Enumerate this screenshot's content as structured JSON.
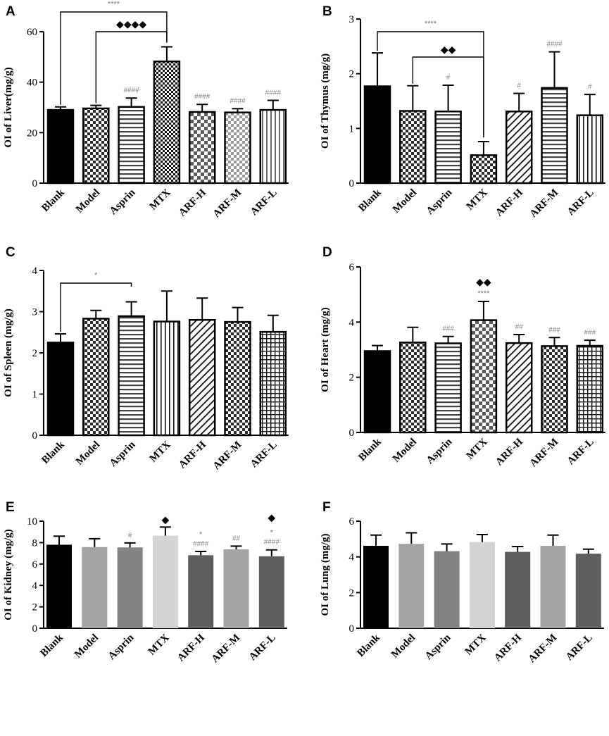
{
  "chart_data": [
    {
      "panel": "A",
      "type": "bar",
      "ylabel": "OI of Liver(mg/g)",
      "ylim": [
        0,
        60
      ],
      "yticks": [
        0,
        20,
        40,
        60
      ],
      "categories": [
        "Blank",
        "Model",
        "Asprin",
        "MTX",
        "ARF-H",
        "ARF-M",
        "ARF-L"
      ],
      "values": [
        29,
        29.6,
        30.2,
        48.2,
        28.2,
        28,
        29
      ],
      "errors": [
        1.2,
        1.2,
        3.5,
        5.8,
        3.0,
        1.5,
        3.8
      ],
      "patterns": [
        "solid",
        "checker",
        "hlines",
        "checker-fine",
        "checker-big",
        "checker-light",
        "vlines-gray"
      ],
      "annotations": [
        "",
        "",
        "####",
        "",
        "####",
        "####",
        "####"
      ],
      "brackets": [
        {
          "from": 0,
          "to": 3,
          "label": "****",
          "kind": "star"
        },
        {
          "from": 1,
          "to": 3,
          "label": "◆◆◆◆",
          "kind": "diamond"
        }
      ]
    },
    {
      "panel": "B",
      "type": "bar",
      "ylabel": "OI of Thymus (mg/g)",
      "ylim": [
        0,
        3
      ],
      "yticks": [
        0,
        1,
        2,
        3
      ],
      "categories": [
        "Blank",
        "Model",
        "Asprin",
        "MTX",
        "ARF-H",
        "ARF-M",
        "ARF-L"
      ],
      "values": [
        1.77,
        1.32,
        1.31,
        0.51,
        1.31,
        1.74,
        1.24
      ],
      "errors": [
        0.61,
        0.46,
        0.48,
        0.25,
        0.33,
        0.66,
        0.38
      ],
      "patterns": [
        "solid",
        "checker",
        "hlines",
        "checker",
        "diag",
        "hlines",
        "vlines"
      ],
      "annotations": [
        "",
        "",
        "#",
        "",
        "#",
        "####",
        "#"
      ],
      "brackets": [
        {
          "from": 0,
          "to": 3,
          "label": "****",
          "kind": "star"
        },
        {
          "from": 1,
          "to": 3,
          "label": "◆◆",
          "kind": "diamond"
        }
      ]
    },
    {
      "panel": "C",
      "type": "bar",
      "ylabel": "OI of Spleen (mg/g)",
      "ylim": [
        0,
        4
      ],
      "yticks": [
        0,
        1,
        2,
        3,
        4
      ],
      "categories": [
        "Blank",
        "Model",
        "Asprin",
        "MTX",
        "ARF-H",
        "ARF-M",
        "ARF-L"
      ],
      "values": [
        2.25,
        2.83,
        2.89,
        2.76,
        2.8,
        2.75,
        2.51
      ],
      "errors": [
        0.21,
        0.2,
        0.35,
        0.74,
        0.53,
        0.35,
        0.4
      ],
      "patterns": [
        "solid",
        "checker",
        "hlines",
        "vlines",
        "diag",
        "checker",
        "grid"
      ],
      "annotations": [
        "",
        "",
        "",
        "",
        "",
        "",
        ""
      ],
      "brackets": [
        {
          "from": 0,
          "to": 2,
          "label": "*",
          "kind": "star"
        }
      ]
    },
    {
      "panel": "D",
      "type": "bar",
      "ylabel": "OI of Heart (mg/g)",
      "ylim": [
        0,
        6
      ],
      "yticks": [
        0,
        2,
        4,
        6
      ],
      "categories": [
        "Blank",
        "Model",
        "Asprin",
        "MTX",
        "ARF-H",
        "ARF-M",
        "ARF-L"
      ],
      "values": [
        2.95,
        3.26,
        3.23,
        4.07,
        3.24,
        3.13,
        3.14
      ],
      "errors": [
        0.2,
        0.55,
        0.25,
        0.68,
        0.31,
        0.31,
        0.2
      ],
      "patterns": [
        "solid",
        "checker",
        "hlines",
        "checker-big",
        "diag",
        "checker",
        "grid"
      ],
      "annotations": [
        "",
        "",
        "###",
        "****",
        "##",
        "###",
        "###"
      ],
      "top_marks": [
        "",
        "",
        "",
        "◆◆",
        "",
        "",
        ""
      ],
      "brackets": []
    },
    {
      "panel": "E",
      "type": "bar",
      "ylabel": "OI of Kidney (mg/g)",
      "ylim": [
        0,
        10
      ],
      "yticks": [
        0,
        2,
        4,
        6,
        8,
        10
      ],
      "categories": [
        "Blank",
        "Model",
        "Asprin",
        "MTX",
        "ARF-H",
        "ARF-M",
        "ARF-L"
      ],
      "values": [
        7.8,
        7.58,
        7.55,
        8.65,
        6.82,
        7.37,
        6.72
      ],
      "errors": [
        0.8,
        0.78,
        0.42,
        0.8,
        0.35,
        0.3,
        0.6
      ],
      "colors": [
        "#000000",
        "#a4a4a4",
        "#838383",
        "#d4d4d4",
        "#5e5e5e",
        "#a4a4a4",
        "#5e5e5e"
      ],
      "annotations": [
        "",
        "",
        "#",
        "",
        "####",
        "##",
        "####"
      ],
      "star_marks": [
        "",
        "",
        "",
        "",
        "*",
        "",
        "*"
      ],
      "top_marks": [
        "",
        "",
        "",
        "◆",
        "",
        "",
        "◆"
      ],
      "brackets": []
    },
    {
      "panel": "F",
      "type": "bar",
      "ylabel": "OI of Lung (mg/g)",
      "ylim": [
        0,
        6
      ],
      "yticks": [
        0,
        2,
        4,
        6
      ],
      "categories": [
        "Blank",
        "Model",
        "Asprin",
        "MTX",
        "ARF-H",
        "ARF-M",
        "ARF-L"
      ],
      "values": [
        4.62,
        4.73,
        4.32,
        4.83,
        4.28,
        4.62,
        4.18
      ],
      "errors": [
        0.6,
        0.62,
        0.4,
        0.42,
        0.3,
        0.6,
        0.25
      ],
      "colors": [
        "#000000",
        "#a4a4a4",
        "#838383",
        "#d4d4d4",
        "#5e5e5e",
        "#a4a4a4",
        "#5e5e5e"
      ],
      "annotations": [
        "",
        "",
        "",
        "",
        "",
        "",
        ""
      ],
      "brackets": []
    }
  ]
}
